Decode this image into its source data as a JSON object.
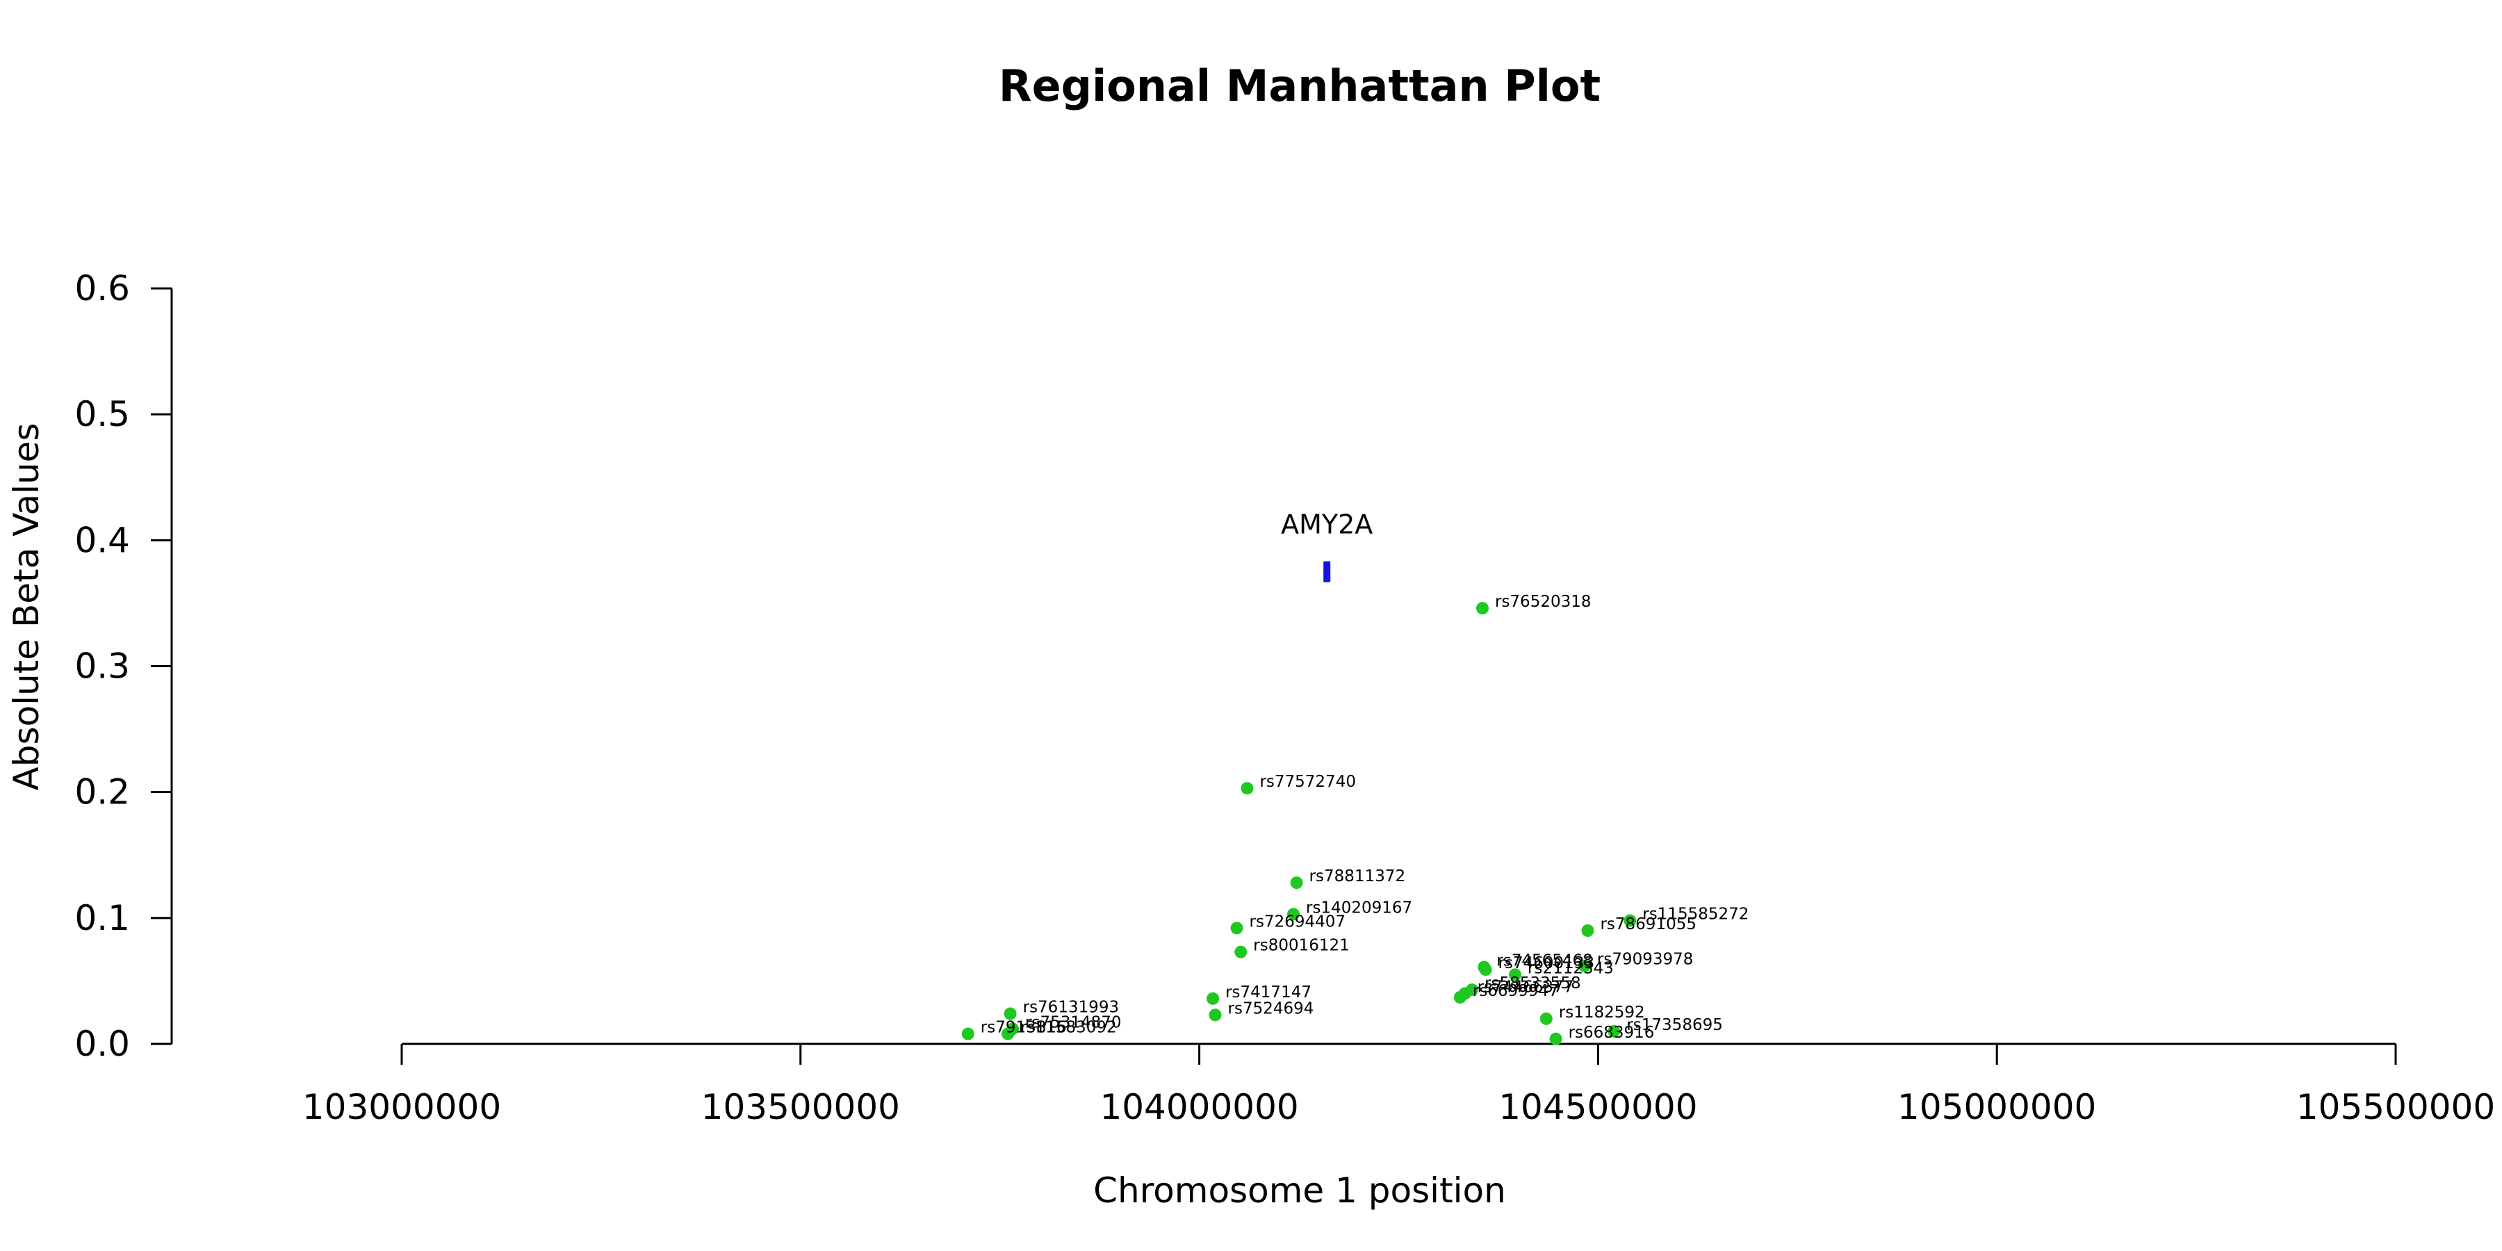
{
  "chart_data": {
    "type": "scatter",
    "title": "Regional Manhattan Plot",
    "xlabel": "Chromosome 1 position",
    "ylabel": "Absolute Beta Values",
    "xlim": [
      103000000,
      105500000
    ],
    "ylim": [
      0,
      0.6
    ],
    "x_ticks": [
      103000000,
      103500000,
      104000000,
      104500000,
      105000000,
      105500000
    ],
    "x_tick_labels": [
      "103000000",
      "103500000",
      "104000000",
      "104500000",
      "105000000",
      "105500000"
    ],
    "y_ticks": [
      0,
      0.1,
      0.2,
      0.3,
      0.4,
      0.5,
      0.6
    ],
    "y_tick_labels": [
      "0.0",
      "0.1",
      "0.2",
      "0.3",
      "0.4",
      "0.5",
      "0.6"
    ],
    "grid": false,
    "point_color": "#1ec81e",
    "gene_color": "#1414e6",
    "gene": {
      "name": "AMY2A",
      "x": 104160000,
      "y": 0.375
    },
    "points": [
      {
        "snp": "rs76520318",
        "x": 104355000,
        "y": 0.346
      },
      {
        "snp": "rs77572740",
        "x": 104060000,
        "y": 0.203
      },
      {
        "snp": "rs78811372",
        "x": 104122000,
        "y": 0.128
      },
      {
        "snp": "rs140209167",
        "x": 104118000,
        "y": 0.103
      },
      {
        "snp": "rs72694407",
        "x": 104047000,
        "y": 0.092
      },
      {
        "snp": "rs80016121",
        "x": 104052000,
        "y": 0.073
      },
      {
        "snp": "rs115585272",
        "x": 104540000,
        "y": 0.098
      },
      {
        "snp": "rs78691055",
        "x": 104487000,
        "y": 0.09
      },
      {
        "snp": "rs79093978",
        "x": 104483000,
        "y": 0.062
      },
      {
        "snp": "rs74565468",
        "x": 104357000,
        "y": 0.061
      },
      {
        "snp": "rs74600133",
        "x": 104359000,
        "y": 0.059
      },
      {
        "snp": "rs2112343",
        "x": 104396000,
        "y": 0.055
      },
      {
        "snp": "rs58533558",
        "x": 104342000,
        "y": 0.043
      },
      {
        "snp": "rs74466377",
        "x": 104333000,
        "y": 0.04
      },
      {
        "snp": "rs6699947",
        "x": 104327000,
        "y": 0.037
      },
      {
        "snp": "rs7417147",
        "x": 104017000,
        "y": 0.036
      },
      {
        "snp": "rs7524694",
        "x": 104020000,
        "y": 0.023
      },
      {
        "snp": "rs1182592",
        "x": 104435000,
        "y": 0.02
      },
      {
        "snp": "rs17358695",
        "x": 104520000,
        "y": 0.01
      },
      {
        "snp": "rs6683916",
        "x": 104447000,
        "y": 0.004
      },
      {
        "snp": "rs76131993",
        "x": 103763000,
        "y": 0.024
      },
      {
        "snp": "rs75314870",
        "x": 103766000,
        "y": 0.012
      },
      {
        "snp": "rs11583092",
        "x": 103760000,
        "y": 0.008
      },
      {
        "snp": "rs7913816",
        "x": 103710000,
        "y": 0.008
      }
    ]
  }
}
